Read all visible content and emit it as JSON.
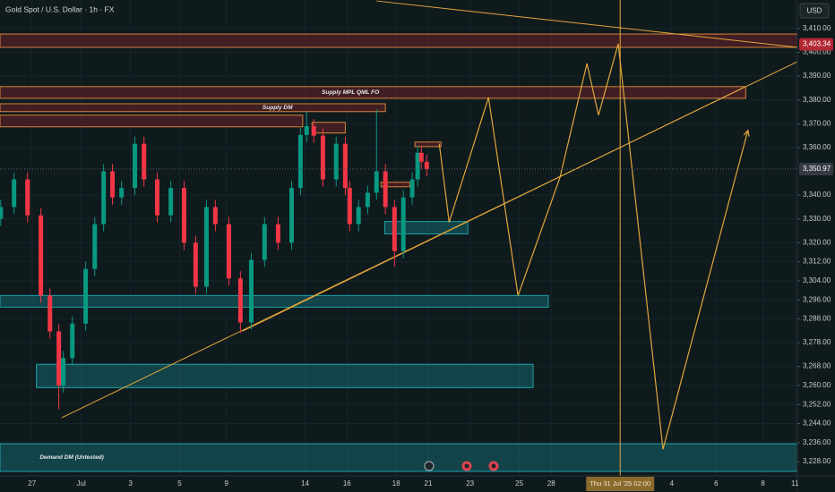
{
  "chart_data": {
    "type": "candlestick",
    "title": "Gold Spot / U.S. Dollar · 1h · FX",
    "currency": "USD",
    "ylim": [
      3222,
      3422
    ],
    "xlim": [
      -1.3,
      31.1
    ],
    "yticks": [
      {
        "value": 3410,
        "label": "3,410.00"
      },
      {
        "value": 3400,
        "label": "3,400.00"
      },
      {
        "value": 3390,
        "label": "3,390.00"
      },
      {
        "value": 3380,
        "label": "3,380.00"
      },
      {
        "value": 3370,
        "label": "3,370.00"
      },
      {
        "value": 3360,
        "label": "3,360.00"
      },
      {
        "value": 3340,
        "label": "3,340.00"
      },
      {
        "value": 3330,
        "label": "3,330.00"
      },
      {
        "value": 3320,
        "label": "3,320.00"
      },
      {
        "value": 3312,
        "label": "3,312.00"
      },
      {
        "value": 3304,
        "label": "3,304.00"
      },
      {
        "value": 3296,
        "label": "3,296.00"
      },
      {
        "value": 3288,
        "label": "3,288.00"
      },
      {
        "value": 3278,
        "label": "3,278.00"
      },
      {
        "value": 3268,
        "label": "3,268.00"
      },
      {
        "value": 3260,
        "label": "3,260.00"
      },
      {
        "value": 3252,
        "label": "3,252.00"
      },
      {
        "value": 3244,
        "label": "3,244.00"
      },
      {
        "value": 3236,
        "label": "3,236.00"
      },
      {
        "value": 3228,
        "label": "3,228.00"
      }
    ],
    "xticks": [
      {
        "value": 0,
        "label": "27"
      },
      {
        "value": 2,
        "label": "Jul"
      },
      {
        "value": 4,
        "label": "3"
      },
      {
        "value": 6,
        "label": "5"
      },
      {
        "value": 7.9,
        "label": "9"
      },
      {
        "value": 11.1,
        "label": "14"
      },
      {
        "value": 12.8,
        "label": "16"
      },
      {
        "value": 14.8,
        "label": "18"
      },
      {
        "value": 16.1,
        "label": "21"
      },
      {
        "value": 17.8,
        "label": "23"
      },
      {
        "value": 19.8,
        "label": "25"
      },
      {
        "value": 21.1,
        "label": "28"
      },
      {
        "value": 26.0,
        "label": "4"
      },
      {
        "value": 27.8,
        "label": "6"
      },
      {
        "value": 29.7,
        "label": "8"
      },
      {
        "value": 31.0,
        "label": "11"
      }
    ],
    "crosshair": {
      "value": 23.9,
      "label": "Thu 31 Jul '25  02:00"
    },
    "price_labels": [
      {
        "value": 3403.34,
        "label": "3,403.34",
        "color": "#b22833"
      },
      {
        "value": 3350.97,
        "label": "3,350.97",
        "color": "#363a45"
      }
    ],
    "up_color": "#089981",
    "down_color": "#f23645",
    "x": [
      -1.27,
      -0.73,
      -0.18,
      0.36,
      0.73,
      1.09,
      1.27,
      1.64,
      2.18,
      2.55,
      2.91,
      3.27,
      3.64,
      4.18,
      4.55,
      5.09,
      5.64,
      6.18,
      6.65,
      7.09,
      7.45,
      8,
      8.47,
      8.91,
      9.45,
      10,
      10.55,
      10.91,
      11.16,
      11.45,
      11.82,
      12.36,
      12.73,
      12.91,
      13.27,
      13.64,
      14,
      14.36,
      14.73,
      15.09,
      15.45,
      15.67,
      15.82,
      16.04
    ],
    "open": [
      3330,
      3335,
      3346.6,
      3331.5,
      3297.8,
      3282.7,
      3260,
      3271.5,
      3286,
      3309,
      3327.8,
      3350,
      3339,
      3343,
      3361.6,
      3346.6,
      3331.5,
      3343,
      3320,
      3301.5,
      3335,
      3327.8,
      3305,
      3286.5,
      3312.8,
      3327.8,
      3320,
      3343,
      3365.3,
      3369,
      3365,
      3346.6,
      3361.6,
      3343,
      3327.8,
      3335,
      3341,
      3350,
      3335,
      3316.5,
      3339,
      3346.6,
      3357.8,
      3354
    ],
    "high": [
      3338,
      3349.6,
      3349.6,
      3334.5,
      3300.8,
      3285.7,
      3274.5,
      3289,
      3312,
      3330.8,
      3353,
      3353,
      3346,
      3364.6,
      3364.6,
      3349.6,
      3346,
      3346,
      3323,
      3338,
      3338,
      3330.8,
      3308,
      3315.8,
      3330.8,
      3330.8,
      3346,
      3368.3,
      3375,
      3372,
      3368,
      3364.6,
      3364.6,
      3346,
      3338,
      3344,
      3376,
      3353,
      3338,
      3342,
      3349.6,
      3360.8,
      3360.8,
      3357
    ],
    "low": [
      3327,
      3332,
      3328.5,
      3294.8,
      3279.7,
      3250,
      3257,
      3268.5,
      3283,
      3306,
      3324.8,
      3336,
      3336,
      3340,
      3343.6,
      3328.5,
      3328.5,
      3317,
      3298.5,
      3298.5,
      3324.8,
      3302,
      3282,
      3283.5,
      3309.8,
      3317,
      3317,
      3340,
      3362.3,
      3362,
      3343.6,
      3343.6,
      3340,
      3324.8,
      3324.8,
      3332,
      3338,
      3332,
      3310,
      3313.5,
      3336,
      3343.6,
      3351,
      3348
    ],
    "close": [
      3335,
      3346.6,
      3331.5,
      3297.8,
      3282.7,
      3260,
      3271.5,
      3286,
      3309,
      3327.8,
      3350,
      3339,
      3343,
      3361.6,
      3346.6,
      3331.5,
      3343,
      3320,
      3301.5,
      3335,
      3327.8,
      3305,
      3286.5,
      3312.8,
      3327.8,
      3320,
      3343,
      3365.3,
      3369,
      3365,
      3346.6,
      3361.6,
      3343,
      3327.8,
      3335,
      3341,
      3350,
      3335,
      3316.5,
      3339,
      3346.6,
      3357.8,
      3354,
      3351
    ],
    "zones": [
      {
        "x": [
          -1.3,
          31.1
        ],
        "y": [
          3402.1,
          3407.7
        ],
        "color": "#b22833"
      },
      {
        "x": [
          -1.3,
          29.0
        ],
        "y": [
          3380.7,
          3385.6
        ],
        "color": "#b22833",
        "label": "Supply MPL QML FO"
      },
      {
        "x": [
          -1.3,
          14.36
        ],
        "y": [
          3375.1,
          3378.4
        ],
        "color": "#b22833",
        "label": "Supply DM"
      },
      {
        "x": [
          -1.3,
          11.0
        ],
        "y": [
          3368.7,
          3373.6
        ],
        "color": "#b22833"
      },
      {
        "x": [
          11.38,
          12.73
        ],
        "y": [
          3366.1,
          3370.6
        ],
        "color": "#b22833"
      },
      {
        "x": [
          15.56,
          16.62
        ],
        "y": [
          3360.4,
          3362.3
        ],
        "color": "#b22833"
      },
      {
        "x": [
          14.18,
          15.35
        ],
        "y": [
          3343.5,
          3345.4
        ],
        "color": "#b22833"
      },
      {
        "x": [
          14.33,
          17.71
        ],
        "y": [
          3323.7,
          3328.9
        ],
        "color": "#1aa3ab"
      },
      {
        "x": [
          -1.3,
          20.98
        ],
        "y": [
          3292.9,
          3297.8
        ],
        "color": "#1aa3ab"
      },
      {
        "x": [
          0.18,
          20.36
        ],
        "y": [
          3259.1,
          3268.9
        ],
        "color": "#1aa3ab"
      },
      {
        "x": [
          -1.3,
          31.1
        ],
        "y": [
          3223.9,
          3235.5
        ],
        "color": "#1aa3ab",
        "label": "Demand DM (Untested)"
      }
    ],
    "trendlines": [
      {
        "x": [
          14.0,
          31.1
        ],
        "y": [
          3421.6,
          3402.1
        ]
      },
      {
        "x": [
          1.2,
          31.1
        ],
        "y": [
          3246.4,
          3396.1
        ]
      },
      {
        "x": [
          8.55,
          28.9
        ],
        "y": [
          3282.8,
          3385.2
        ]
      }
    ],
    "line_color": "#e3a63b",
    "projection": {
      "x": [
        16.55,
        16.95,
        18.55,
        19.75,
        21.45,
        22.55,
        23.02,
        23.82,
        25.64,
        29.09
      ],
      "y": [
        3361.6,
        3328.5,
        3381.1,
        3297.8,
        3347.3,
        3395.3,
        3373.6,
        3403.6,
        3233.2,
        3367.2
      ]
    }
  }
}
